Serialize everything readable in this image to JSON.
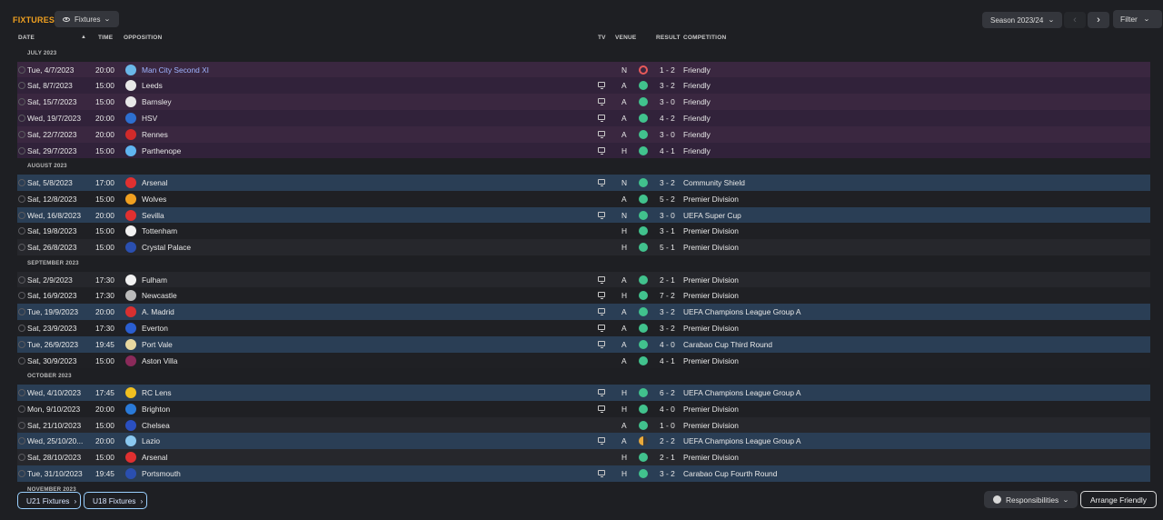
{
  "header": {
    "title": "FIXTURES",
    "view_selector": "Fixtures",
    "season_selector": "Season 2023/24",
    "filter_label": "Filter"
  },
  "columns": {
    "date": "DATE",
    "time": "TIME",
    "opposition": "OPPOSITION",
    "tv": "TV",
    "venue": "VENUE",
    "result": "RESULT",
    "competition": "COMPETITION"
  },
  "sections": [
    {
      "label": "JULY 2023",
      "friendly": true,
      "rows": [
        {
          "date": "Tue, 4/7/2023",
          "time": "20:00",
          "opp": "Man City Second XI",
          "link": true,
          "tv": false,
          "venue": "N",
          "res": "l",
          "score": "1 - 2",
          "comp": "Friendly",
          "badge": "#6ab7e8"
        },
        {
          "date": "Sat, 8/7/2023",
          "time": "15:00",
          "opp": "Leeds",
          "tv": true,
          "venue": "A",
          "res": "w",
          "score": "3 - 2",
          "comp": "Friendly",
          "badge": "#e8e8e8"
        },
        {
          "date": "Sat, 15/7/2023",
          "time": "15:00",
          "opp": "Barnsley",
          "tv": true,
          "venue": "A",
          "res": "w",
          "score": "3 - 0",
          "comp": "Friendly",
          "badge": "#e8e8e8"
        },
        {
          "date": "Wed, 19/7/2023",
          "time": "20:00",
          "opp": "HSV",
          "tv": true,
          "venue": "A",
          "res": "w",
          "score": "4 - 2",
          "comp": "Friendly",
          "badge": "#2d6fd0"
        },
        {
          "date": "Sat, 22/7/2023",
          "time": "20:00",
          "opp": "Rennes",
          "tv": true,
          "venue": "A",
          "res": "w",
          "score": "3 - 0",
          "comp": "Friendly",
          "badge": "#d02a2a"
        },
        {
          "date": "Sat, 29/7/2023",
          "time": "15:00",
          "opp": "Parthenope",
          "tv": true,
          "venue": "H",
          "res": "w",
          "score": "4 - 1",
          "comp": "Friendly",
          "badge": "#5fb4f0"
        }
      ]
    },
    {
      "label": "AUGUST 2023",
      "rows": [
        {
          "date": "Sat, 5/8/2023",
          "time": "17:00",
          "opp": "Arsenal",
          "tv": true,
          "venue": "N",
          "res": "w",
          "score": "3 - 2",
          "comp": "Community Shield",
          "badge": "#e03030",
          "hl": true
        },
        {
          "date": "Sat, 12/8/2023",
          "time": "15:00",
          "opp": "Wolves",
          "tv": false,
          "venue": "A",
          "res": "w",
          "score": "5 - 2",
          "comp": "Premier Division",
          "badge": "#f0a020"
        },
        {
          "date": "Wed, 16/8/2023",
          "time": "20:00",
          "opp": "Sevilla",
          "tv": true,
          "venue": "N",
          "res": "w",
          "score": "3 - 0",
          "comp": "UEFA Super Cup",
          "badge": "#e03030",
          "hl": true
        },
        {
          "date": "Sat, 19/8/2023",
          "time": "15:00",
          "opp": "Tottenham",
          "tv": false,
          "venue": "H",
          "res": "w",
          "score": "3 - 1",
          "comp": "Premier Division",
          "badge": "#f2f2f2"
        },
        {
          "date": "Sat, 26/8/2023",
          "time": "15:00",
          "opp": "Crystal Palace",
          "tv": false,
          "venue": "H",
          "res": "w",
          "score": "5 - 1",
          "comp": "Premier Division",
          "badge": "#2a4fb0"
        }
      ]
    },
    {
      "label": "SEPTEMBER 2023",
      "rows": [
        {
          "date": "Sat, 2/9/2023",
          "time": "17:30",
          "opp": "Fulham",
          "tv": true,
          "venue": "A",
          "res": "w",
          "score": "2 - 1",
          "comp": "Premier Division",
          "badge": "#f2f2f2"
        },
        {
          "date": "Sat, 16/9/2023",
          "time": "17:30",
          "opp": "Newcastle",
          "tv": true,
          "venue": "H",
          "res": "w",
          "score": "7 - 2",
          "comp": "Premier Division",
          "badge": "#bbbbbb"
        },
        {
          "date": "Tue, 19/9/2023",
          "time": "20:00",
          "opp": "A. Madrid",
          "tv": true,
          "venue": "A",
          "res": "w",
          "score": "3 - 2",
          "comp": "UEFA Champions League Group A",
          "badge": "#d83030",
          "hl": true
        },
        {
          "date": "Sat, 23/9/2023",
          "time": "17:30",
          "opp": "Everton",
          "tv": true,
          "venue": "A",
          "res": "w",
          "score": "3 - 2",
          "comp": "Premier Division",
          "badge": "#2a5ed0"
        },
        {
          "date": "Tue, 26/9/2023",
          "time": "19:45",
          "opp": "Port Vale",
          "tv": true,
          "venue": "A",
          "res": "w",
          "score": "4 - 0",
          "comp": "Carabao Cup Third Round",
          "badge": "#e8d8a0",
          "hl": true
        },
        {
          "date": "Sat, 30/9/2023",
          "time": "15:00",
          "opp": "Aston Villa",
          "tv": false,
          "venue": "A",
          "res": "w",
          "score": "4 - 1",
          "comp": "Premier Division",
          "badge": "#8a2a5a"
        }
      ]
    },
    {
      "label": "OCTOBER 2023",
      "rows": [
        {
          "date": "Wed, 4/10/2023",
          "time": "17:45",
          "opp": "RC Lens",
          "tv": true,
          "venue": "H",
          "res": "w",
          "score": "6 - 2",
          "comp": "UEFA Champions League Group A",
          "badge": "#f0c020",
          "hl": true
        },
        {
          "date": "Mon, 9/10/2023",
          "time": "20:00",
          "opp": "Brighton",
          "tv": true,
          "venue": "H",
          "res": "w",
          "score": "4 - 0",
          "comp": "Premier Division",
          "badge": "#2a7ad8"
        },
        {
          "date": "Sat, 21/10/2023",
          "time": "15:00",
          "opp": "Chelsea",
          "tv": false,
          "venue": "A",
          "res": "w",
          "score": "1 - 0",
          "comp": "Premier Division",
          "badge": "#2a4fc0"
        },
        {
          "date": "Wed, 25/10/20...",
          "time": "20:00",
          "opp": "Lazio",
          "tv": true,
          "venue": "A",
          "res": "d",
          "score": "2 - 2",
          "comp": "UEFA Champions League Group A",
          "badge": "#8ac8f0",
          "hl": true
        },
        {
          "date": "Sat, 28/10/2023",
          "time": "15:00",
          "opp": "Arsenal",
          "tv": false,
          "venue": "H",
          "res": "w",
          "score": "2 - 1",
          "comp": "Premier Division",
          "badge": "#e03030"
        },
        {
          "date": "Tue, 31/10/2023",
          "time": "19:45",
          "opp": "Portsmouth",
          "tv": true,
          "venue": "H",
          "res": "w",
          "score": "3 - 2",
          "comp": "Carabao Cup Fourth Round",
          "badge": "#2a4fb0",
          "hl": true
        }
      ]
    },
    {
      "label": "NOVEMBER 2023",
      "rows": []
    }
  ],
  "footer": {
    "u21": "U21 Fixtures",
    "u18": "U18 Fixtures",
    "responsibilities": "Responsibilities",
    "arrange": "Arrange Friendly"
  }
}
